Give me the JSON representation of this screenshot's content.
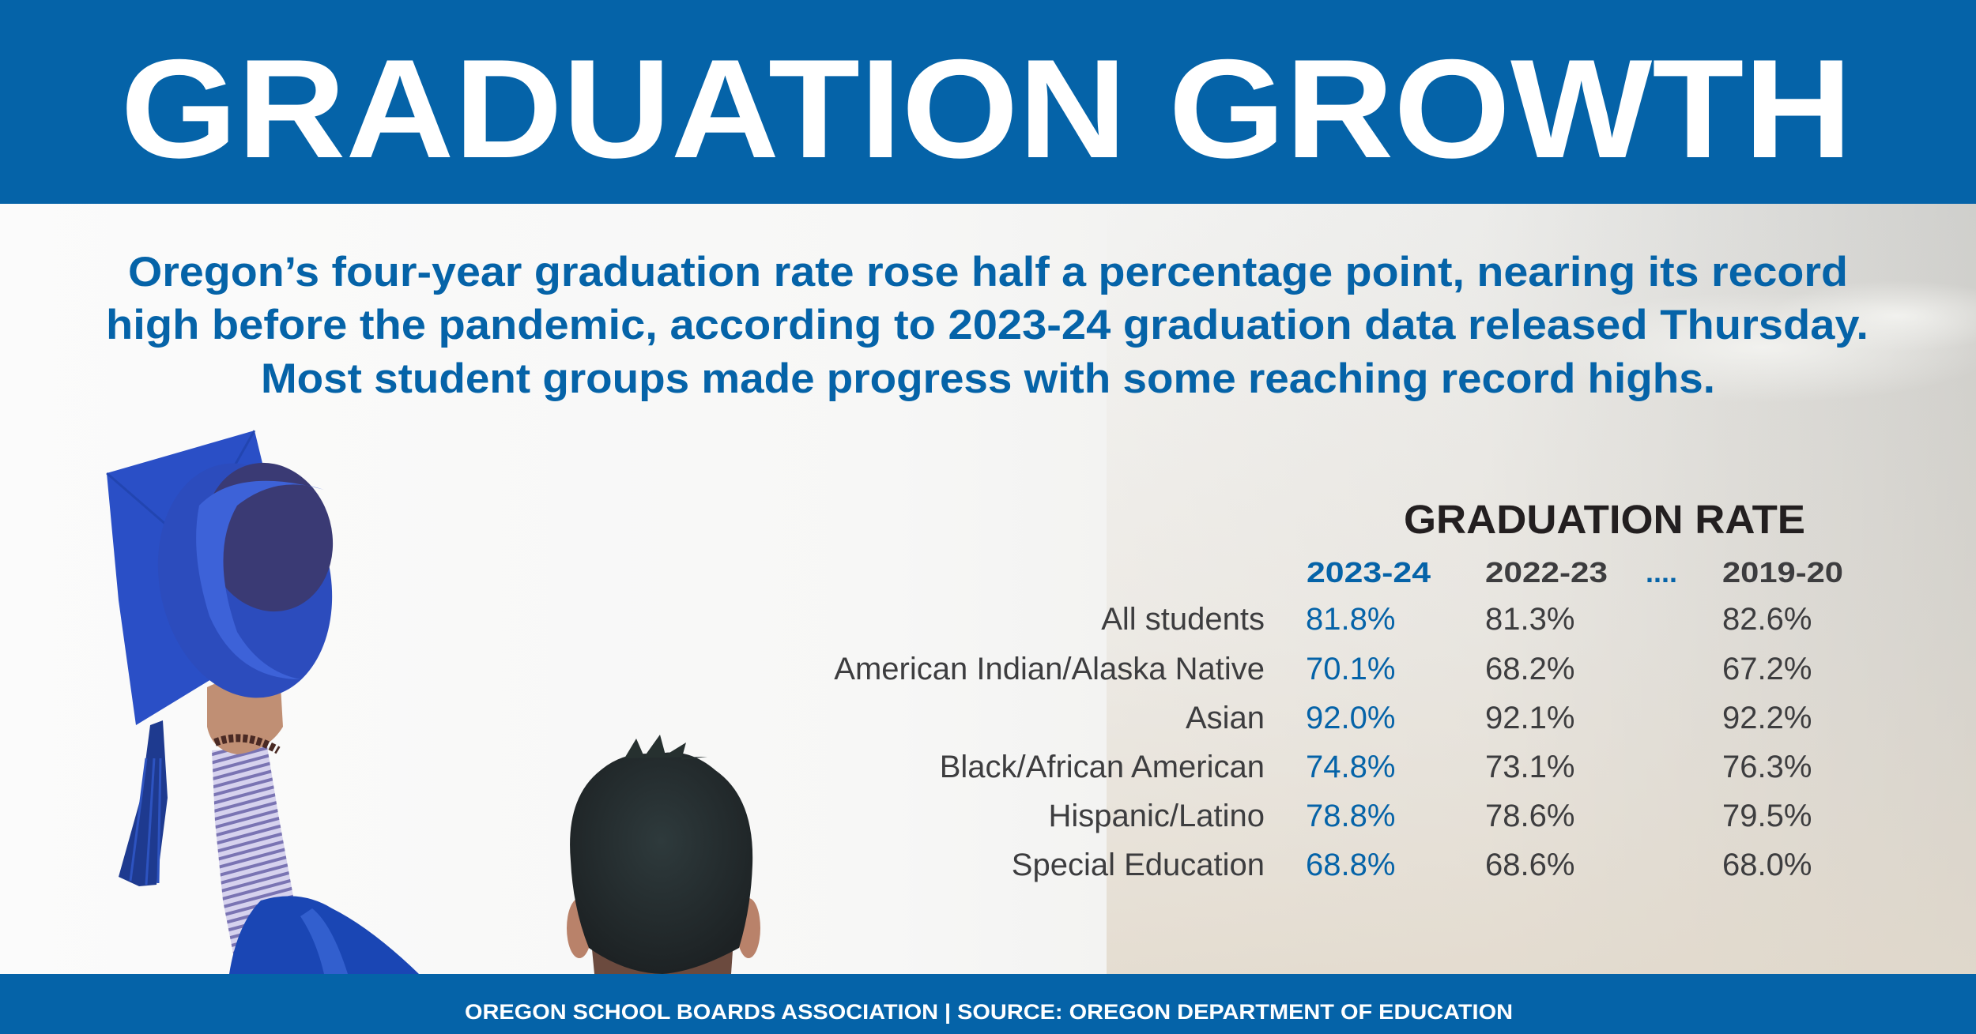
{
  "header": {
    "title": "GRADUATION GROWTH"
  },
  "lede": {
    "lines": [
      "Oregon’s four-year graduation rate rose half a percentage point, nearing its record",
      "high before the pandemic, according to 2023-24 graduation data released Thursday.",
      "Most student groups made progress with some reaching record highs."
    ]
  },
  "table": {
    "title": "GRADUATION RATE",
    "columns": [
      "2023-24",
      "2022-23",
      "2019-20"
    ],
    "ellipsis": "....",
    "rows": [
      {
        "label": "All students",
        "values": [
          "81.8%",
          "81.3%",
          "82.6%"
        ]
      },
      {
        "label": "American Indian/Alaska Native",
        "values": [
          "70.1%",
          "68.2%",
          "67.2%"
        ]
      },
      {
        "label": "Asian",
        "values": [
          "92.0%",
          "92.1%",
          "92.2%"
        ]
      },
      {
        "label": "Black/African American",
        "values": [
          "74.8%",
          "73.1%",
          "76.3%"
        ]
      },
      {
        "label": "Hispanic/Latino",
        "values": [
          "78.8%",
          "78.6%",
          "79.5%"
        ]
      },
      {
        "label": "Special Education",
        "values": [
          "68.8%",
          "68.6%",
          "68.0%"
        ]
      }
    ]
  },
  "footer": {
    "text": "OREGON SCHOOL BOARDS ASSOCIATION | SOURCE: OREGON DEPARTMENT OF EDUCATION"
  },
  "colors": {
    "brand_blue": "#0563a8",
    "text_dark": "#3d3d3f",
    "heading_black": "#231f20"
  },
  "photo": {
    "subject_icons": [
      "graduation-cap-icon",
      "graduate-head-icon"
    ]
  }
}
